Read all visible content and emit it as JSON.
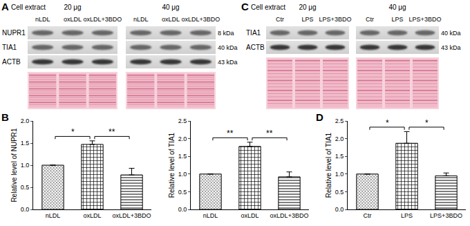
{
  "blots": [
    {
      "panel": "A",
      "header": "Cell extract",
      "groups": [
        {
          "label": "20 μg",
          "lanes": [
            "nLDL",
            "oxLDL",
            "oxLDL+3BDO"
          ]
        },
        {
          "label": "40 μg",
          "lanes": [
            "nLDL",
            "oxLDL",
            "oxLDL+3BDO"
          ]
        }
      ],
      "rows": [
        {
          "label": "NUPR1",
          "size": "8 kDa"
        },
        {
          "label": "TIA1",
          "size": "40 kDa"
        },
        {
          "label": "ACTB",
          "size": "43 kDa"
        }
      ]
    },
    {
      "panel": "C",
      "header": "Cell extract",
      "groups": [
        {
          "label": "20 μg",
          "lanes": [
            "Ctr",
            "LPS",
            "LPS+3BDO"
          ]
        },
        {
          "label": "40 μg",
          "lanes": [
            "Ctr",
            "LPS",
            "LPS+3BDO"
          ]
        }
      ],
      "rows": [
        {
          "label": "TIA1",
          "size": "40 kDa"
        },
        {
          "label": "ACTB",
          "size": "43 kDa"
        }
      ]
    }
  ],
  "chart_data": [
    {
      "panel": "B",
      "type": "bar",
      "categories": [
        "nLDL",
        "oxLDL",
        "oxLDL+3BDO"
      ],
      "values": [
        1.0,
        1.47,
        0.78
      ],
      "errors": [
        0,
        0.08,
        0.15
      ],
      "y_label": "Relative level of NUPR1",
      "ylim": [
        0,
        2.0
      ],
      "yticks": [
        {
          "value": 0,
          "label": "0.0"
        },
        0.5,
        {
          "value": 1,
          "label": "1.0"
        },
        1.5,
        {
          "value": 2,
          "label": "2.0"
        }
      ],
      "grid": false,
      "annotations": [
        {
          "from": "nLDL",
          "to": "oxLDL",
          "text": "*"
        },
        {
          "from": "oxLDL",
          "to": "oxLDL+3BDO",
          "text": "**"
        }
      ]
    },
    {
      "type": "bar",
      "categories": [
        "nLDL",
        "oxLDL",
        "oxLDL+3BDO"
      ],
      "values": [
        1.0,
        1.78,
        0.92
      ],
      "errors": [
        0,
        0.12,
        0.14
      ],
      "y_label": "Relative level of TIA1",
      "ylim": [
        0,
        2.5
      ],
      "yticks": [
        {
          "value": 0,
          "label": "0.0"
        },
        0.5,
        {
          "value": 1,
          "label": "1.0"
        },
        1.5,
        {
          "value": 2,
          "label": "2.0"
        },
        2.5
      ],
      "grid": false,
      "annotations": [
        {
          "from": "nLDL",
          "to": "oxLDL",
          "text": "**"
        },
        {
          "from": "oxLDL",
          "to": "oxLDL+3BDO",
          "text": "**"
        }
      ]
    },
    {
      "panel": "D",
      "type": "bar",
      "categories": [
        "Ctr",
        "LPS",
        "LPS+3BDO"
      ],
      "values": [
        1.0,
        1.87,
        0.95
      ],
      "errors": [
        0,
        0.33,
        0.08
      ],
      "y_label": "Relative level of TIA1",
      "ylim": [
        0,
        2.5
      ],
      "yticks": [
        {
          "value": 0,
          "label": "0.0"
        },
        0.5,
        {
          "value": 1,
          "label": "1.0"
        },
        1.5,
        {
          "value": 2,
          "label": "2.0"
        },
        2.5
      ],
      "grid": false,
      "annotations": [
        {
          "from": "Ctr",
          "to": "LPS",
          "text": "*"
        },
        {
          "from": "LPS",
          "to": "LPS+3BDO",
          "text": "*"
        }
      ]
    }
  ]
}
